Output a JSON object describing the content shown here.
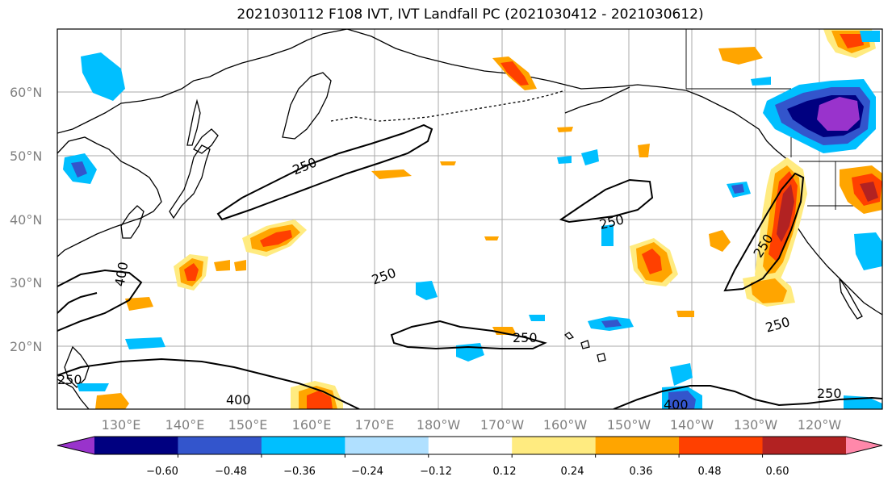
{
  "title": "2021030112 F108 IVT, IVT Landfall PC (2021030412 - 2021030612)",
  "lat_labels": [
    "60°N",
    "50°N",
    "40°N",
    "30°N",
    "20°N"
  ],
  "lon_labels": [
    "130°E",
    "140°E",
    "150°E",
    "160°E",
    "170°E",
    "180°W",
    "170°W",
    "160°W",
    "150°W",
    "140°W",
    "130°W",
    "120°W"
  ],
  "contour_labels": [
    "250",
    "250",
    "250",
    "250",
    "250",
    "250",
    "250",
    "400",
    "400",
    "400",
    "250"
  ],
  "colorbar": {
    "tick_labels": [
      "−0.60",
      "−0.48",
      "−0.36",
      "−0.24",
      "−0.12",
      "0.12",
      "0.24",
      "0.36",
      "0.48",
      "0.60"
    ],
    "colors": [
      "#9933cc",
      "#000080",
      "#3355cc",
      "#00bfff",
      "#b0e0ff",
      "#ffffff",
      "#ffeb80",
      "#ffa500",
      "#ff4000",
      "#b22222",
      "#ff88aa"
    ]
  }
}
